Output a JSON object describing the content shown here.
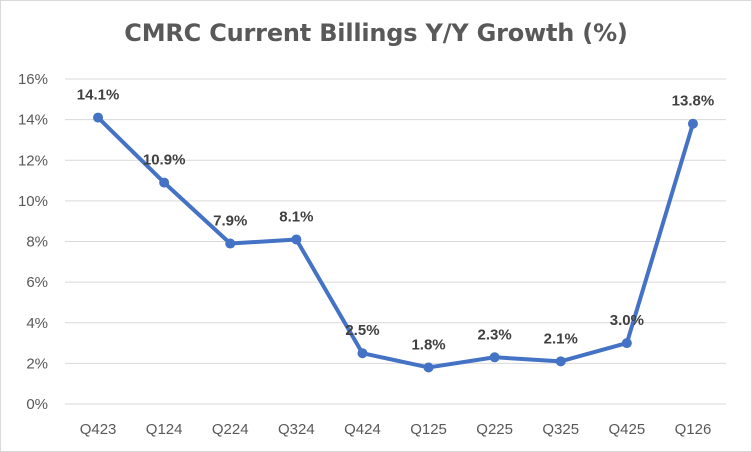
{
  "chart_data": {
    "type": "line",
    "title": "CMRC Current Billings Y/Y Growth (%)",
    "categories": [
      "Q423",
      "Q124",
      "Q224",
      "Q324",
      "Q424",
      "Q125",
      "Q225",
      "Q325",
      "Q425",
      "Q126"
    ],
    "series": [
      {
        "values": [
          14.1,
          10.9,
          7.9,
          8.1,
          2.5,
          1.8,
          2.3,
          2.1,
          3.0,
          13.8
        ],
        "labels": [
          "14.1%",
          "10.9%",
          "7.9%",
          "8.1%",
          "2.5%",
          "1.8%",
          "2.3%",
          "2.1%",
          "3.0%",
          "13.8%"
        ],
        "color": "#4472c4"
      }
    ],
    "yticks": [
      "0%",
      "2%",
      "4%",
      "6%",
      "8%",
      "10%",
      "12%",
      "14%",
      "16%"
    ],
    "ylim": [
      0,
      16
    ],
    "grid": true,
    "legend": "none",
    "gridColor": "#d9d9d9",
    "textColor": "#595959"
  }
}
